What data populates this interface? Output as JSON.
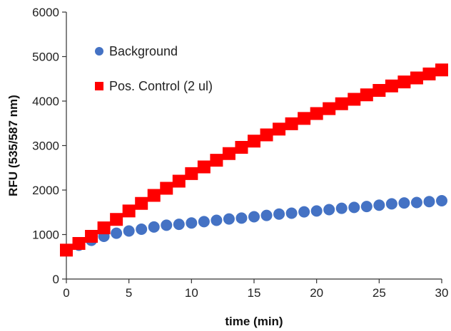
{
  "chart_data": {
    "type": "scatter",
    "xlabel": "time (min)",
    "ylabel": "RFU (535/587 nm)",
    "xlim": [
      0,
      30
    ],
    "ylim": [
      0,
      6000
    ],
    "x_ticks": [
      0,
      5,
      10,
      15,
      20,
      25,
      30
    ],
    "y_ticks": [
      0,
      1000,
      2000,
      3000,
      4000,
      5000,
      6000
    ],
    "grid": false,
    "legend_position": "top-left",
    "x": [
      0,
      1,
      2,
      3,
      4,
      5,
      6,
      7,
      8,
      9,
      10,
      11,
      12,
      13,
      14,
      15,
      16,
      17,
      18,
      19,
      20,
      21,
      22,
      23,
      24,
      25,
      26,
      27,
      28,
      29,
      30
    ],
    "series": [
      {
        "name": "Background",
        "marker": "circle",
        "color": "#4472c4",
        "values": [
          650,
          760,
          870,
          960,
          1030,
          1080,
          1120,
          1170,
          1210,
          1230,
          1260,
          1290,
          1320,
          1350,
          1370,
          1400,
          1430,
          1460,
          1480,
          1510,
          1530,
          1560,
          1590,
          1610,
          1630,
          1660,
          1690,
          1710,
          1720,
          1740,
          1760
        ]
      },
      {
        "name": "Pos. Control (2 ul)",
        "marker": "square",
        "color": "#ff0000",
        "values": [
          650,
          800,
          960,
          1150,
          1340,
          1530,
          1700,
          1880,
          2040,
          2200,
          2370,
          2520,
          2670,
          2820,
          2960,
          3100,
          3240,
          3370,
          3490,
          3610,
          3720,
          3830,
          3940,
          4040,
          4140,
          4240,
          4340,
          4430,
          4520,
          4610,
          4700
        ]
      }
    ]
  }
}
